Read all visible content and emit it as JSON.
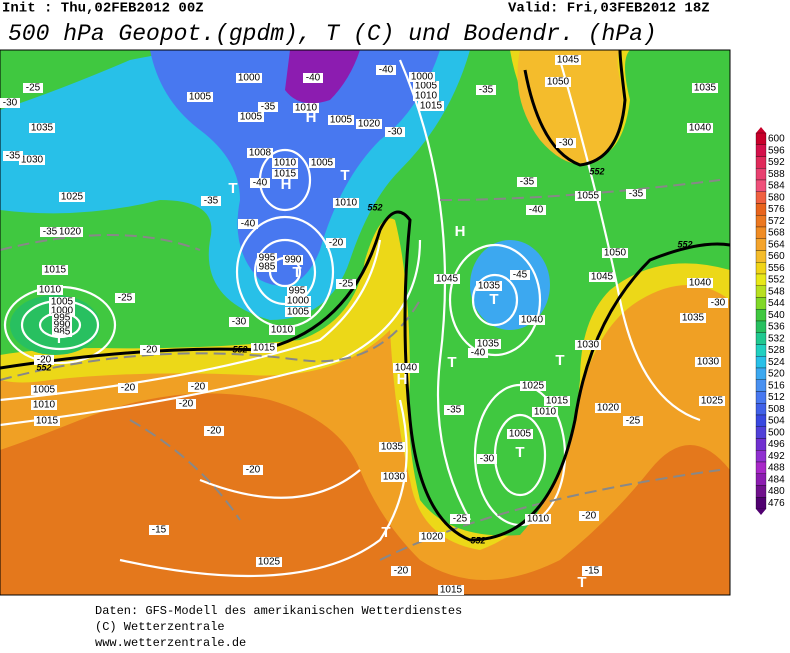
{
  "header": {
    "init": "Init : Thu,02FEB2012 00Z",
    "valid": "Valid: Fri,03FEB2012 18Z",
    "title": "500 hPa Geopot.(gpdm), T (C) und Bodendr. (hPa)"
  },
  "footer": [
    "Daten: GFS-Modell des amerikanischen Wetterdienstes",
    "(C) Wetterzentrale",
    "www.wetterzentrale.de"
  ],
  "colorbar": {
    "values": [
      600,
      596,
      592,
      588,
      584,
      580,
      576,
      572,
      568,
      564,
      560,
      556,
      552,
      548,
      544,
      540,
      536,
      532,
      528,
      524,
      520,
      516,
      512,
      508,
      504,
      500,
      496,
      492,
      488,
      484,
      480,
      476
    ],
    "colors": [
      "#c8002a",
      "#d4104a",
      "#e02a5a",
      "#e84070",
      "#f0507a",
      "#f06040",
      "#e8641c",
      "#ec7820",
      "#f08c24",
      "#f4a42c",
      "#f4bc2c",
      "#f0d418",
      "#e8e818",
      "#b8e020",
      "#80d828",
      "#40c840",
      "#28c060",
      "#20c890",
      "#20d0c0",
      "#28c0e8",
      "#3ca8f0",
      "#4890f0",
      "#4878f0",
      "#4060e8",
      "#3848e0",
      "#5040d8",
      "#7030d0",
      "#9030d0",
      "#a828c8",
      "#8c1cb0",
      "#70108c",
      "#500070"
    ]
  },
  "map": {
    "labels": [
      1045,
      1050,
      1035,
      1040,
      -30,
      1055,
      -35,
      1050,
      1045,
      1040,
      -30,
      1035,
      1030,
      1030,
      1025,
      1020,
      -25,
      1015,
      1010,
      1025,
      1005,
      1010,
      -20,
      -15,
      1015,
      1020,
      -20,
      -25,
      1025,
      -15,
      -20,
      -20,
      -20,
      -20,
      -20,
      -20,
      1015,
      1010,
      -30,
      1005,
      1000,
      995,
      990,
      995,
      985,
      -40,
      -35,
      -20,
      -25,
      1035,
      1030,
      1040,
      -30,
      -35,
      1035,
      -40,
      1040,
      -45,
      1035,
      1045,
      -40,
      -35,
      1025,
      1020,
      -35,
      1015,
      1010,
      1005,
      1000,
      995,
      990,
      985,
      -25,
      -20,
      1005,
      1010,
      1015,
      1035,
      1030,
      -25,
      -30,
      -35,
      1000,
      1005,
      1005,
      -35,
      1010,
      -40,
      1005,
      1008,
      1010,
      1015,
      1005,
      1010,
      -40,
      1020,
      -30,
      1015,
      1010,
      1005,
      1000,
      -40,
      -35,
      "H",
      "H",
      "H",
      "H",
      "T",
      "T",
      "T",
      "T",
      "T",
      "T",
      "T",
      "T",
      "T",
      "T",
      552,
      552,
      552,
      552,
      552,
      552
    ]
  }
}
